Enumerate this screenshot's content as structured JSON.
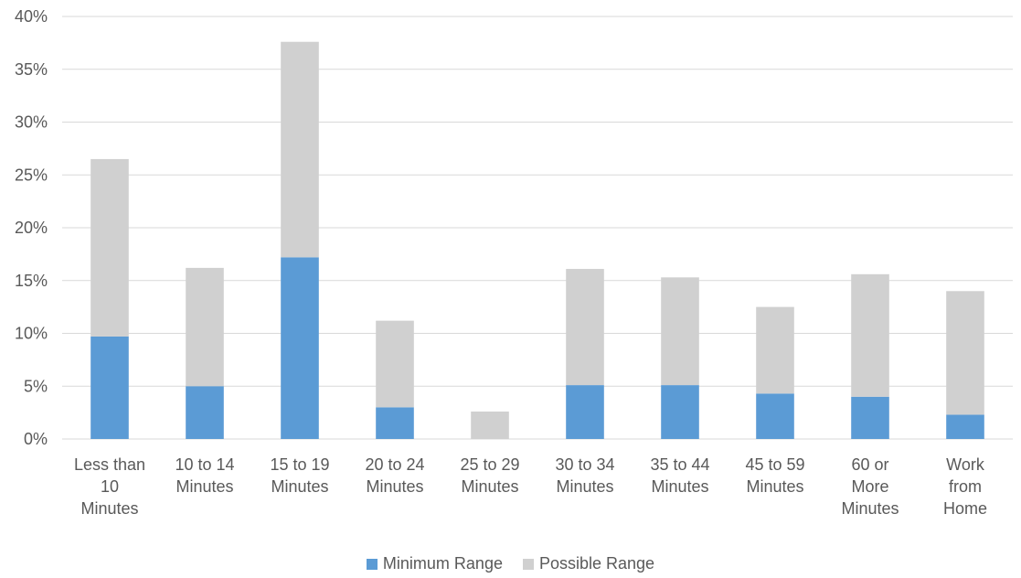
{
  "chart_data": {
    "type": "bar",
    "stacked": true,
    "categories": [
      [
        "Less than",
        "10",
        "Minutes"
      ],
      [
        "10 to 14",
        "Minutes"
      ],
      [
        "15 to 19",
        "Minutes"
      ],
      [
        "20 to 24",
        "Minutes"
      ],
      [
        "25 to 29",
        "Minutes"
      ],
      [
        "30 to 34",
        "Minutes"
      ],
      [
        "35 to 44",
        "Minutes"
      ],
      [
        "45 to 59",
        "Minutes"
      ],
      [
        "60 or",
        "More",
        "Minutes"
      ],
      [
        "Work",
        "from",
        "Home"
      ]
    ],
    "series": [
      {
        "name": "Minimum Range",
        "color": "#5B9BD5",
        "values": [
          9.7,
          5.0,
          17.2,
          3.0,
          0.0,
          5.1,
          5.1,
          4.3,
          4.0,
          2.3
        ]
      },
      {
        "name": "Possible Range",
        "color": "#D0D0D0",
        "values": [
          16.8,
          11.2,
          20.4,
          8.2,
          2.6,
          11.0,
          10.2,
          8.2,
          11.6,
          11.7
        ]
      }
    ],
    "ylim": [
      0,
      40
    ],
    "yticks": [
      0,
      5,
      10,
      15,
      20,
      25,
      30,
      35,
      40
    ],
    "ytick_labels": [
      "0%",
      "5%",
      "10%",
      "15%",
      "20%",
      "25%",
      "30%",
      "35%",
      "40%"
    ],
    "grid": true,
    "legend_position": "bottom",
    "title": "",
    "xlabel": "",
    "ylabel": ""
  }
}
